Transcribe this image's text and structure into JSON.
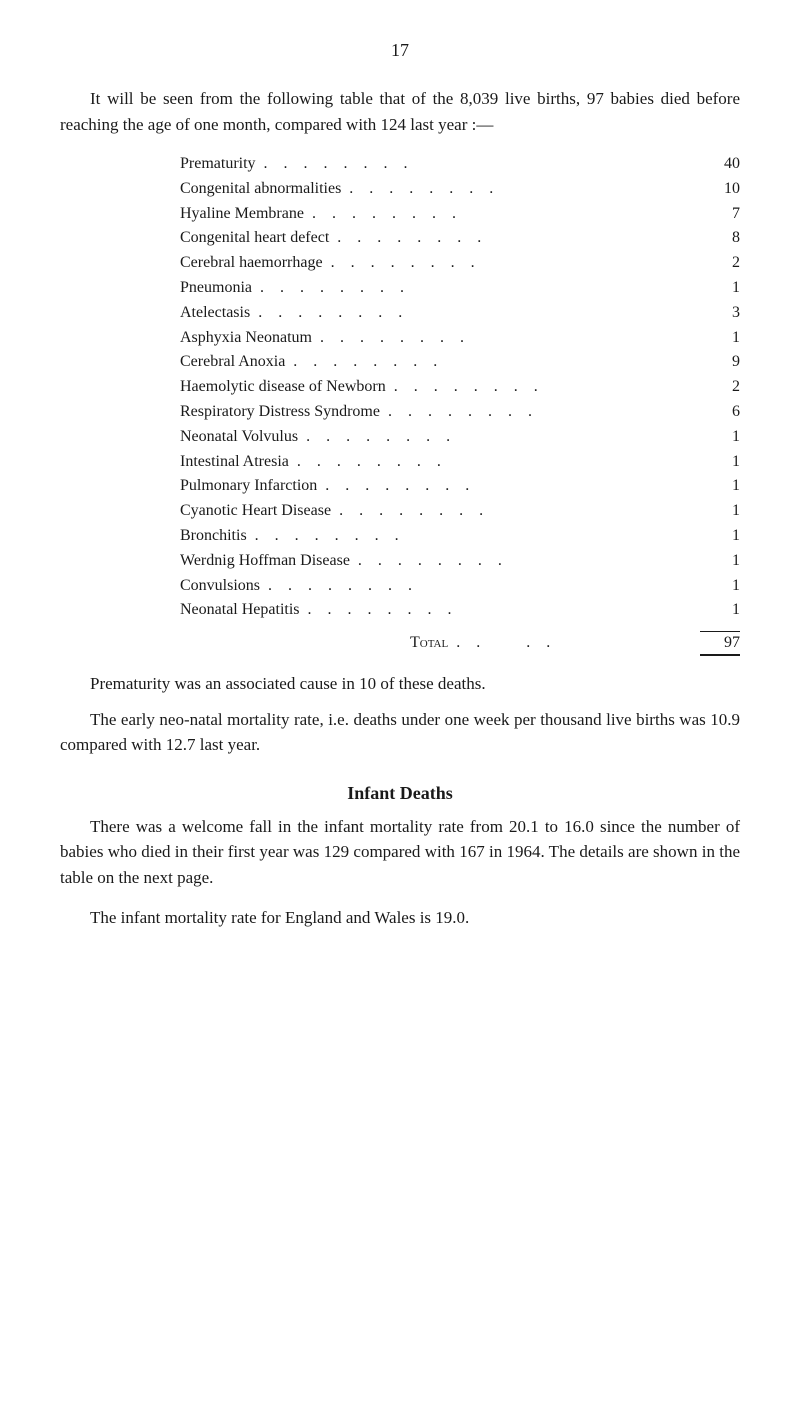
{
  "page_number": "17",
  "intro_paragraph": "It will be seen from the following table that of the 8,039 live births, 97 babies died before reaching the age of one month, compared with 124 last year :—",
  "table": {
    "rows": [
      {
        "label": "Prematurity",
        "value": "40"
      },
      {
        "label": "Congenital abnormalities",
        "value": "10"
      },
      {
        "label": "Hyaline Membrane",
        "value": "7"
      },
      {
        "label": "Congenital heart defect",
        "value": "8"
      },
      {
        "label": "Cerebral haemorrhage",
        "value": "2"
      },
      {
        "label": "Pneumonia",
        "value": "1"
      },
      {
        "label": "Atelectasis",
        "value": "3"
      },
      {
        "label": "Asphyxia Neonatum",
        "value": "1"
      },
      {
        "label": "Cerebral Anoxia",
        "value": "9"
      },
      {
        "label": "Haemolytic disease of Newborn",
        "value": "2"
      },
      {
        "label": "Respiratory Distress Syndrome",
        "value": "6"
      },
      {
        "label": "Neonatal Volvulus",
        "value": "1"
      },
      {
        "label": "Intestinal Atresia",
        "value": "1"
      },
      {
        "label": "Pulmonary Infarction",
        "value": "1"
      },
      {
        "label": "Cyanotic Heart Disease",
        "value": "1"
      },
      {
        "label": "Bronchitis",
        "value": "1"
      },
      {
        "label": "Werdnig Hoffman Disease",
        "value": "1"
      },
      {
        "label": "Convulsions",
        "value": "1"
      },
      {
        "label": "Neonatal Hepatitis",
        "value": "1"
      }
    ],
    "total_label": "Total",
    "total_value": "97"
  },
  "prematurity_paragraph": "Prematurity was an associated cause in 10 of these deaths.",
  "neonatal_paragraph": "The early neo-natal mortality rate, i.e. deaths under one week per thousand live births was 10.9 compared with 12.7 last year.",
  "infant_deaths": {
    "heading": "Infant Deaths",
    "paragraph1": "There was a welcome fall in the infant mortality rate from 20.1 to 16.0 since the number of babies who died in their first year was 129 compared with 167 in 1964. The details are shown in the table on the next page.",
    "paragraph2": "The infant mortality rate for England and Wales is 19.0."
  },
  "style": {
    "background_color": "#ffffff",
    "text_color": "#1a1a1a",
    "body_fontsize": 17,
    "table_fontsize": 16,
    "heading_fontsize": 18
  }
}
